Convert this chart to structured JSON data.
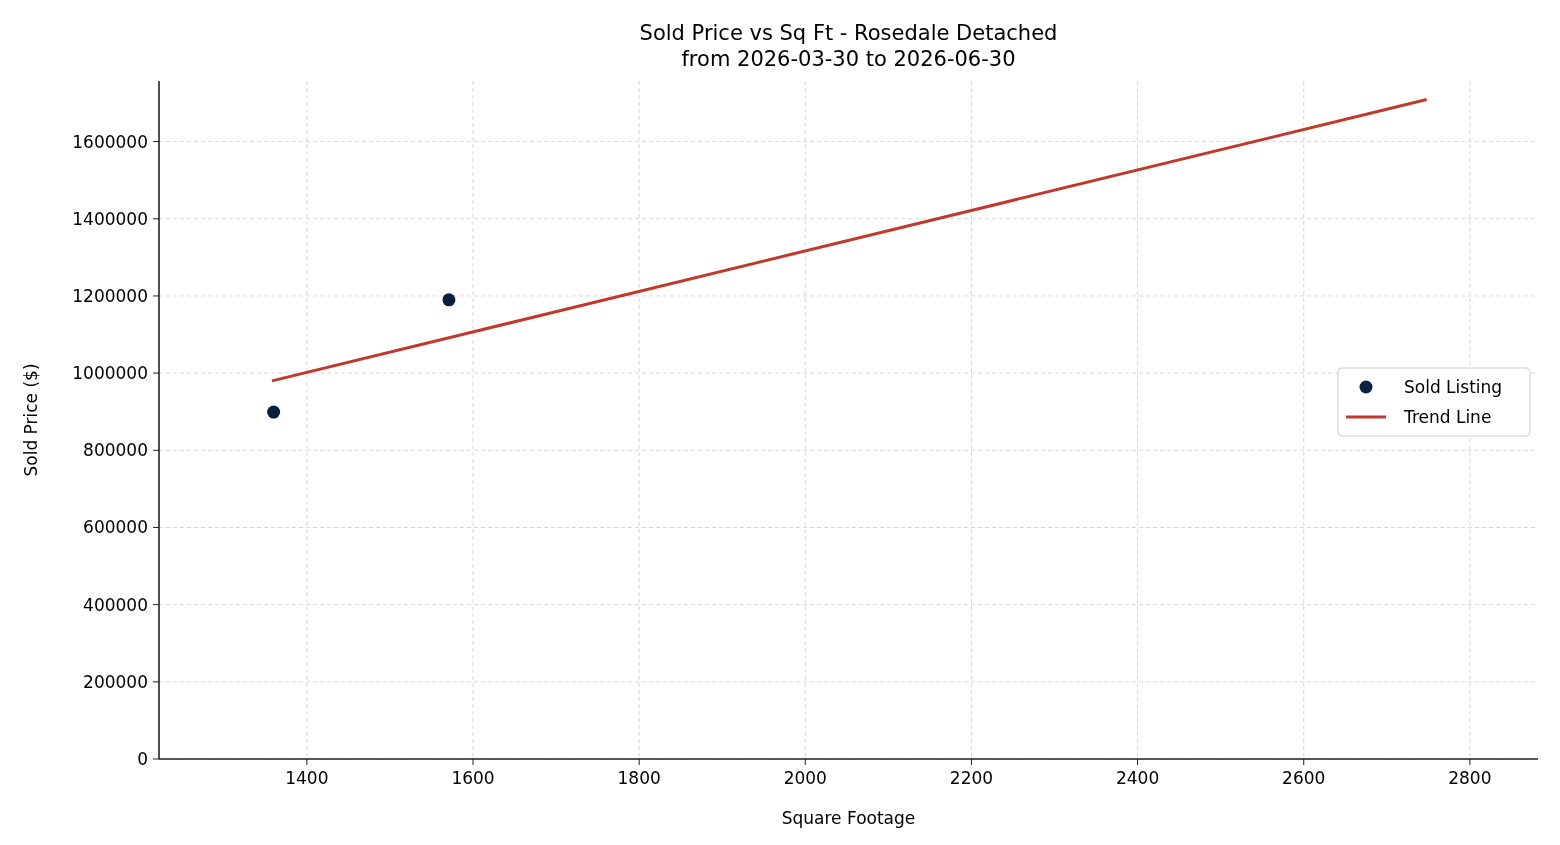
{
  "chart_data": {
    "type": "scatter",
    "title": "Sold Price vs Sq Ft - Rosedale Detached\nfrom 2026-03-30 to 2026-06-30",
    "xlabel": "Square Footage",
    "ylabel": "Sold Price ($)",
    "series": [
      {
        "name": "Sold Listing",
        "color": "#0b1f3f",
        "x": [
          1360,
          1571
        ],
        "values": [
          899000,
          1190000
        ],
        "marker": "circle"
      },
      {
        "name": "Trend Line",
        "type": "line",
        "color": "#c0392b",
        "x": [
          1358,
          2748
        ],
        "values": [
          980000,
          1709000
        ]
      }
    ],
    "xlim": [
      1222,
      2882
    ],
    "xticks": [
      1400,
      1600,
      1800,
      2000,
      2200,
      2400,
      2600,
      2800
    ],
    "ylim": [
      0,
      1757000
    ],
    "yticks": [
      0,
      200000,
      400000,
      600000,
      800000,
      1000000,
      1200000,
      1400000,
      1600000
    ],
    "grid": true,
    "legend": "right"
  }
}
